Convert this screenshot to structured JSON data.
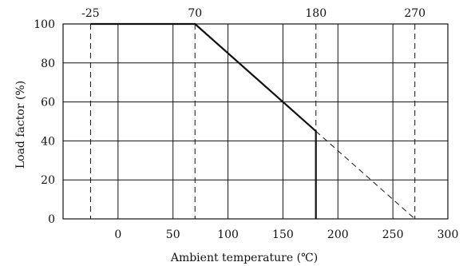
{
  "chart_data": {
    "type": "line",
    "xlabel": "Ambient temperature (℃)",
    "ylabel": "Load factor (%)",
    "xlim": [
      -50,
      300
    ],
    "ylim": [
      0,
      100
    ],
    "x_ticks": [
      0,
      50,
      100,
      150,
      200,
      250,
      300
    ],
    "y_ticks": [
      0,
      20,
      40,
      60,
      80,
      100
    ],
    "grid": true,
    "top_ticks": [
      {
        "label": "-25",
        "x": -25
      },
      {
        "label": "70",
        "x": 70
      },
      {
        "label": "180",
        "x": 180
      },
      {
        "label": "270",
        "x": 270
      }
    ],
    "series": [
      {
        "style": "solid",
        "color": "#111111",
        "points": [
          [
            -25,
            100
          ],
          [
            70,
            100
          ],
          [
            180,
            45
          ],
          [
            180,
            0
          ]
        ]
      },
      {
        "style": "dashed",
        "color": "#111111",
        "points": [
          [
            180,
            45
          ],
          [
            270,
            0
          ]
        ]
      }
    ],
    "reference_lines": [
      {
        "x": -25,
        "style": "dashed"
      },
      {
        "x": 70,
        "style": "dashed"
      },
      {
        "x": 180,
        "style": "dashed"
      },
      {
        "x": 270,
        "style": "dashed"
      }
    ]
  }
}
